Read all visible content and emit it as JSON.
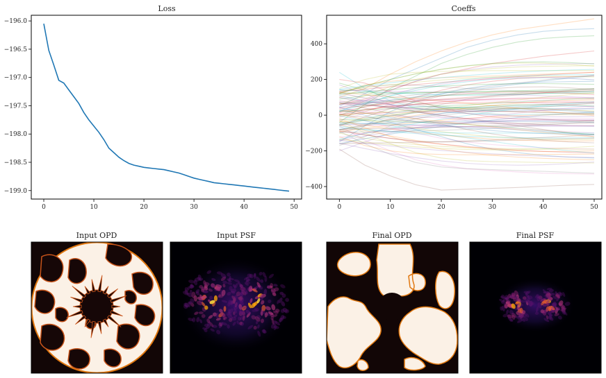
{
  "figure": {
    "panels": [
      "Loss",
      "Coeffs",
      "Input OPD",
      "Input PSF",
      "Final OPD",
      "Final PSF"
    ]
  },
  "chart_data": [
    {
      "type": "line",
      "title": "Loss",
      "xlabel": "",
      "ylabel": "",
      "xlim": [
        -2.5,
        51.5
      ],
      "ylim": [
        -199.15,
        -195.9
      ],
      "xticks": [
        0,
        10,
        20,
        30,
        40,
        50
      ],
      "yticks": [
        -196.0,
        -196.5,
        -197.0,
        -197.5,
        -198.0,
        -198.5,
        -199.0
      ],
      "ytick_labels": [
        "−196.0",
        "−196.5",
        "−197.0",
        "−197.5",
        "−198.0",
        "−198.5",
        "−199.0"
      ],
      "grid": false,
      "color": "#1f77b4",
      "series": [
        {
          "x": [
            0,
            1,
            2,
            3,
            4,
            5,
            6,
            7,
            8,
            9,
            10,
            11,
            12,
            13,
            14,
            15,
            16,
            17,
            18,
            19,
            20,
            21,
            22,
            23,
            24,
            25,
            26,
            27,
            28,
            29,
            30,
            31,
            32,
            33,
            34,
            35,
            36,
            37,
            38,
            39,
            40,
            41,
            42,
            43,
            44,
            45,
            46,
            47,
            48,
            49
          ],
          "values": [
            -196.05,
            -196.52,
            -196.78,
            -197.05,
            -197.1,
            -197.22,
            -197.34,
            -197.46,
            -197.62,
            -197.75,
            -197.86,
            -197.97,
            -198.1,
            -198.25,
            -198.33,
            -198.41,
            -198.47,
            -198.52,
            -198.55,
            -198.57,
            -198.59,
            -198.6,
            -198.61,
            -198.62,
            -198.63,
            -198.65,
            -198.67,
            -198.69,
            -198.72,
            -198.75,
            -198.78,
            -198.8,
            -198.82,
            -198.84,
            -198.86,
            -198.87,
            -198.88,
            -198.89,
            -198.9,
            -198.91,
            -198.92,
            -198.93,
            -198.94,
            -198.95,
            -198.96,
            -198.97,
            -198.98,
            -198.99,
            -199.0,
            -199.01
          ]
        }
      ]
    },
    {
      "type": "line",
      "title": "Coeffs",
      "xlabel": "",
      "ylabel": "",
      "xlim": [
        -2.5,
        51.5
      ],
      "ylim": [
        -470,
        560
      ],
      "xticks": [
        0,
        10,
        20,
        30,
        40,
        50
      ],
      "yticks": [
        -400,
        -200,
        0,
        200,
        400
      ],
      "ytick_labels": [
        "−400",
        "−200",
        "0",
        "200",
        "400"
      ],
      "grid": false,
      "series_count": 100,
      "line_alpha": 0.25,
      "series": [
        {
          "values": [
            50,
            120,
            200,
            260,
            320,
            380,
            420,
            450,
            470,
            480,
            485
          ]
        },
        {
          "values": [
            100,
            150,
            230,
            300,
            360,
            410,
            450,
            480,
            500,
            520,
            540
          ]
        },
        {
          "values": [
            -40,
            60,
            150,
            220,
            290,
            340,
            380,
            410,
            430,
            440,
            445
          ]
        },
        {
          "values": [
            60,
            90,
            140,
            190,
            230,
            260,
            290,
            310,
            330,
            345,
            360
          ]
        },
        {
          "values": [
            20,
            80,
            140,
            190,
            230,
            255,
            270,
            280,
            285,
            288,
            290
          ]
        },
        {
          "values": [
            -190,
            -280,
            -340,
            -390,
            -420,
            -415,
            -410,
            -405,
            -398,
            -392,
            -388
          ]
        },
        {
          "values": [
            -60,
            -140,
            -200,
            -250,
            -280,
            -300,
            -310,
            -318,
            -325,
            -328,
            -330
          ]
        },
        {
          "values": [
            -90,
            -160,
            -220,
            -265,
            -290,
            -300,
            -305,
            -310,
            -315,
            -320,
            -325
          ]
        },
        {
          "values": [
            -30,
            -100,
            -160,
            -210,
            -240,
            -255,
            -260,
            -262,
            -265,
            -266,
            -268
          ]
        },
        {
          "values": [
            240,
            150,
            80,
            40,
            20,
            10,
            5,
            5,
            5,
            5,
            5
          ]
        },
        {
          "values": [
            -150,
            -60,
            20,
            80,
            120,
            150,
            170,
            180,
            185,
            188,
            190
          ]
        },
        {
          "values": [
            120,
            170,
            190,
            200,
            210,
            215,
            220,
            225,
            230,
            235,
            240
          ]
        },
        {
          "values": [
            0,
            50,
            80,
            100,
            110,
            115,
            118,
            120,
            122,
            123,
            124
          ]
        },
        {
          "values": [
            200,
            180,
            130,
            80,
            40,
            10,
            -10,
            -20,
            -25,
            -28,
            -30
          ]
        },
        {
          "values": [
            -200,
            -150,
            -100,
            -70,
            -50,
            -40,
            -35,
            -32,
            -30,
            -28,
            -26
          ]
        },
        {
          "values": [
            80,
            60,
            40,
            20,
            0,
            -20,
            -40,
            -60,
            -80,
            -100,
            -120
          ]
        },
        {
          "values": [
            10,
            -30,
            -70,
            -100,
            -130,
            -150,
            -165,
            -175,
            -182,
            -188,
            -190
          ]
        },
        {
          "values": [
            -100,
            -60,
            -20,
            20,
            60,
            90,
            110,
            125,
            135,
            140,
            145
          ]
        },
        {
          "values": [
            150,
            200,
            230,
            240,
            245,
            248,
            250,
            250,
            250,
            250,
            250
          ]
        },
        {
          "values": [
            -50,
            -20,
            10,
            30,
            40,
            45,
            48,
            50,
            50,
            50,
            50
          ]
        },
        {
          "values": [
            30,
            0,
            -40,
            -80,
            -120,
            -160,
            -190,
            -210,
            -225,
            -235,
            -240
          ]
        },
        {
          "values": [
            -120,
            -170,
            -200,
            -215,
            -220,
            -222,
            -222,
            -221,
            -220,
            -219,
            -218
          ]
        },
        {
          "values": [
            90,
            110,
            120,
            125,
            128,
            130,
            131,
            132,
            133,
            134,
            135
          ]
        },
        {
          "values": [
            -10,
            20,
            60,
            100,
            140,
            170,
            190,
            205,
            212,
            216,
            220
          ]
        },
        {
          "values": [
            170,
            120,
            60,
            20,
            -10,
            -30,
            -45,
            -55,
            -60,
            -62,
            -64
          ]
        },
        {
          "values": [
            -80,
            -110,
            -130,
            -145,
            -150,
            -148,
            -144,
            -140,
            -136,
            -132,
            -130
          ]
        },
        {
          "values": [
            40,
            20,
            0,
            -10,
            -15,
            -18,
            -20,
            -20,
            -20,
            -20,
            -20
          ]
        },
        {
          "values": [
            -170,
            -120,
            -60,
            -20,
            10,
            30,
            45,
            55,
            60,
            62,
            64
          ]
        },
        {
          "values": [
            60,
            110,
            160,
            200,
            230,
            250,
            262,
            270,
            274,
            276,
            278
          ]
        },
        {
          "values": [
            -60,
            -80,
            -90,
            -95,
            -98,
            -100,
            -100,
            -100,
            -100,
            -100,
            -100
          ]
        },
        {
          "values": [
            110,
            80,
            60,
            50,
            45,
            42,
            40,
            38,
            37,
            36,
            35
          ]
        },
        {
          "values": [
            -20,
            -70,
            -120,
            -160,
            -190,
            -210,
            -225,
            -235,
            -242,
            -246,
            -250
          ]
        },
        {
          "values": [
            180,
            140,
            100,
            70,
            50,
            35,
            25,
            20,
            15,
            12,
            10
          ]
        },
        {
          "values": [
            0,
            30,
            50,
            60,
            65,
            68,
            70,
            71,
            72,
            72,
            72
          ]
        },
        {
          "values": [
            -140,
            -100,
            -80,
            -70,
            -66,
            -64,
            -63,
            -62,
            -61,
            -60,
            -60
          ]
        },
        {
          "values": [
            70,
            40,
            10,
            -20,
            -50,
            -80,
            -105,
            -125,
            -140,
            -150,
            -155
          ]
        },
        {
          "values": [
            -30,
            10,
            40,
            60,
            75,
            85,
            92,
            96,
            98,
            99,
            100
          ]
        },
        {
          "values": [
            130,
            160,
            170,
            168,
            160,
            150,
            142,
            136,
            132,
            130,
            128
          ]
        },
        {
          "values": [
            -100,
            -130,
            -150,
            -165,
            -175,
            -182,
            -186,
            -188,
            -190,
            -190,
            -190
          ]
        },
        {
          "values": [
            20,
            60,
            110,
            150,
            180,
            200,
            212,
            220,
            224,
            226,
            228
          ]
        }
      ]
    }
  ]
}
